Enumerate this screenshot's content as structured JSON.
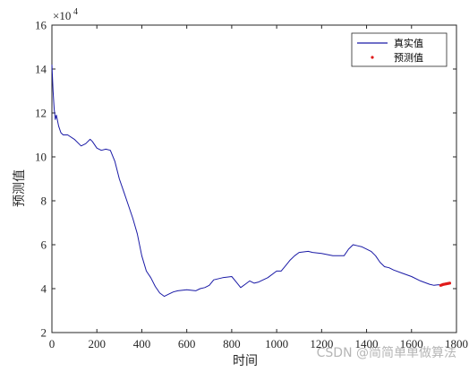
{
  "chart_data": {
    "type": "line",
    "xlabel": "时间",
    "ylabel": "预测值",
    "xlim": [
      0,
      1800
    ],
    "ylim": [
      20000,
      160000
    ],
    "y_multiplier_label": "×10",
    "y_multiplier_exp": "4",
    "xticks": [
      0,
      200,
      400,
      600,
      800,
      1000,
      1200,
      1400,
      1600,
      1800
    ],
    "yticks": [
      20000,
      40000,
      60000,
      80000,
      100000,
      120000,
      140000,
      160000
    ],
    "ytick_labels": [
      "2",
      "4",
      "6",
      "8",
      "10",
      "12",
      "14",
      "16"
    ],
    "grid": false,
    "legend_position": "top-right",
    "series": [
      {
        "name": "真实值",
        "style": "line",
        "color": "#1a1aa6",
        "x": [
          0,
          5,
          10,
          15,
          20,
          30,
          40,
          50,
          70,
          100,
          130,
          150,
          170,
          180,
          200,
          220,
          240,
          260,
          280,
          300,
          320,
          340,
          360,
          380,
          400,
          420,
          440,
          460,
          480,
          500,
          520,
          540,
          560,
          600,
          640,
          660,
          680,
          700,
          720,
          760,
          800,
          820,
          840,
          860,
          880,
          900,
          920,
          940,
          960,
          1000,
          1020,
          1040,
          1060,
          1080,
          1100,
          1140,
          1160,
          1200,
          1250,
          1300,
          1320,
          1340,
          1360,
          1380,
          1400,
          1420,
          1440,
          1460,
          1480,
          1500,
          1520,
          1560,
          1600,
          1640,
          1680,
          1700,
          1720,
          1740
        ],
        "values": [
          142000,
          130000,
          122000,
          117000,
          119000,
          114000,
          111000,
          110000,
          110000,
          108000,
          105000,
          106000,
          108000,
          107000,
          104000,
          103000,
          103500,
          103000,
          98000,
          90000,
          84000,
          78000,
          72000,
          65000,
          55000,
          48000,
          45000,
          41000,
          38000,
          36500,
          37500,
          38500,
          39000,
          39500,
          39000,
          40000,
          40500,
          41500,
          44000,
          45000,
          45500,
          43000,
          40500,
          42000,
          43500,
          42500,
          43000,
          44000,
          45000,
          48000,
          48000,
          50500,
          53000,
          55000,
          56500,
          57000,
          56500,
          56000,
          55000,
          55000,
          58000,
          60000,
          59500,
          59000,
          58000,
          57000,
          55000,
          52000,
          50000,
          49500,
          48500,
          47000,
          45500,
          43500,
          42000,
          41500,
          41800,
          41500
        ]
      },
      {
        "name": "预测值",
        "style": "points",
        "color": "#e01b1b",
        "x": [
          1730,
          1735,
          1740,
          1745,
          1750,
          1755,
          1760,
          1765,
          1770
        ],
        "values": [
          41500,
          41700,
          41900,
          42000,
          42100,
          42200,
          42300,
          42400,
          42500
        ]
      }
    ]
  },
  "watermark": "CSDN @简简单单做算法"
}
